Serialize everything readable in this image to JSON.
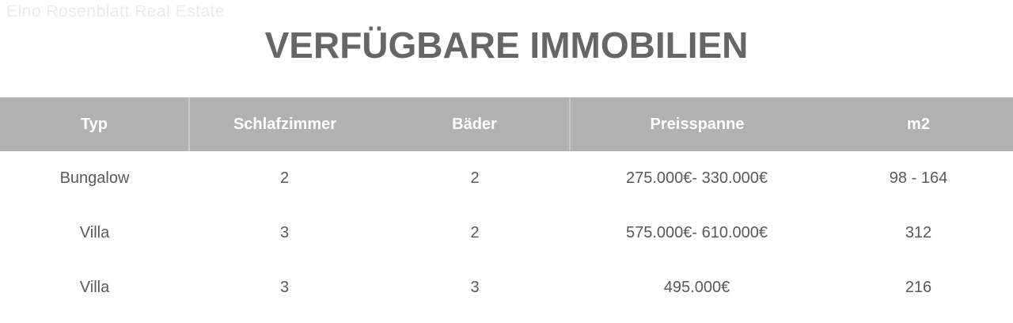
{
  "watermark": "Elno Rosenblatt Real Estate",
  "page_title": "VERFÜGBARE IMMOBILIEN",
  "table": {
    "columns": [
      "Typ",
      "Schlafzimmer",
      "Bäder",
      "Preisspanne",
      "m2"
    ],
    "rows": [
      [
        "Bungalow",
        "2",
        "2",
        "275.000€- 330.000€",
        "98 - 164"
      ],
      [
        "Villa",
        "3",
        "2",
        "575.000€- 610.000€",
        "312"
      ],
      [
        "Villa",
        "3",
        "3",
        "495.000€",
        "216"
      ]
    ]
  },
  "colors": {
    "page_bg": "#ffffff",
    "header_bg": "#b1b1b1",
    "header_text": "#ffffff",
    "title_text": "#666666",
    "body_text": "#595959",
    "watermark_text": "#ebebeb",
    "column_divider": "#c9c9c9"
  }
}
